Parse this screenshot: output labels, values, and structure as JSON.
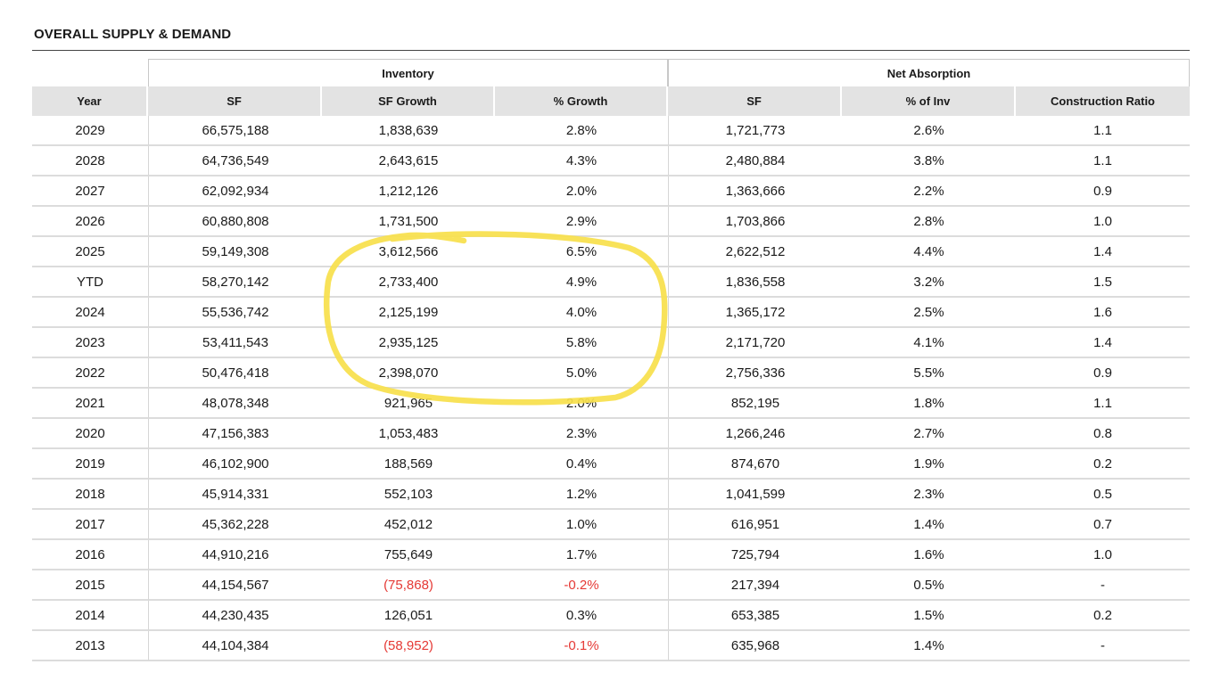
{
  "title": "OVERALL SUPPLY & DEMAND",
  "groups": {
    "inventory": "Inventory",
    "net_absorption": "Net Absorption"
  },
  "columns": [
    "Year",
    "SF",
    "SF Growth",
    "% Growth",
    "SF",
    "% of Inv",
    "Construction Ratio"
  ],
  "rows": [
    [
      "2029",
      "66,575,188",
      "1,838,639",
      "2.8%",
      "1,721,773",
      "2.6%",
      "1.1"
    ],
    [
      "2028",
      "64,736,549",
      "2,643,615",
      "4.3%",
      "2,480,884",
      "3.8%",
      "1.1"
    ],
    [
      "2027",
      "62,092,934",
      "1,212,126",
      "2.0%",
      "1,363,666",
      "2.2%",
      "0.9"
    ],
    [
      "2026",
      "60,880,808",
      "1,731,500",
      "2.9%",
      "1,703,866",
      "2.8%",
      "1.0"
    ],
    [
      "2025",
      "59,149,308",
      "3,612,566",
      "6.5%",
      "2,622,512",
      "4.4%",
      "1.4"
    ],
    [
      "YTD",
      "58,270,142",
      "2,733,400",
      "4.9%",
      "1,836,558",
      "3.2%",
      "1.5"
    ],
    [
      "2024",
      "55,536,742",
      "2,125,199",
      "4.0%",
      "1,365,172",
      "2.5%",
      "1.6"
    ],
    [
      "2023",
      "53,411,543",
      "2,935,125",
      "5.8%",
      "2,171,720",
      "4.1%",
      "1.4"
    ],
    [
      "2022",
      "50,476,418",
      "2,398,070",
      "5.0%",
      "2,756,336",
      "5.5%",
      "0.9"
    ],
    [
      "2021",
      "48,078,348",
      "921,965",
      "2.0%",
      "852,195",
      "1.8%",
      "1.1"
    ],
    [
      "2020",
      "47,156,383",
      "1,053,483",
      "2.3%",
      "1,266,246",
      "2.7%",
      "0.8"
    ],
    [
      "2019",
      "46,102,900",
      "188,569",
      "0.4%",
      "874,670",
      "1.9%",
      "0.2"
    ],
    [
      "2018",
      "45,914,331",
      "552,103",
      "1.2%",
      "1,041,599",
      "2.3%",
      "0.5"
    ],
    [
      "2017",
      "45,362,228",
      "452,012",
      "1.0%",
      "616,951",
      "1.4%",
      "0.7"
    ],
    [
      "2016",
      "44,910,216",
      "755,649",
      "1.7%",
      "725,794",
      "1.6%",
      "1.0"
    ],
    [
      "2015",
      "44,154,567",
      "(75,868)",
      "-0.2%",
      "217,394",
      "0.5%",
      "-"
    ],
    [
      "2014",
      "44,230,435",
      "126,051",
      "0.3%",
      "653,385",
      "1.5%",
      "0.2"
    ],
    [
      "2013",
      "44,104,384",
      "(58,952)",
      "-0.1%",
      "635,968",
      "1.4%",
      "-"
    ]
  ],
  "colors": {
    "negative": "#e53935",
    "highlight": "#f7e04b",
    "header_bg": "#e3e3e3"
  }
}
